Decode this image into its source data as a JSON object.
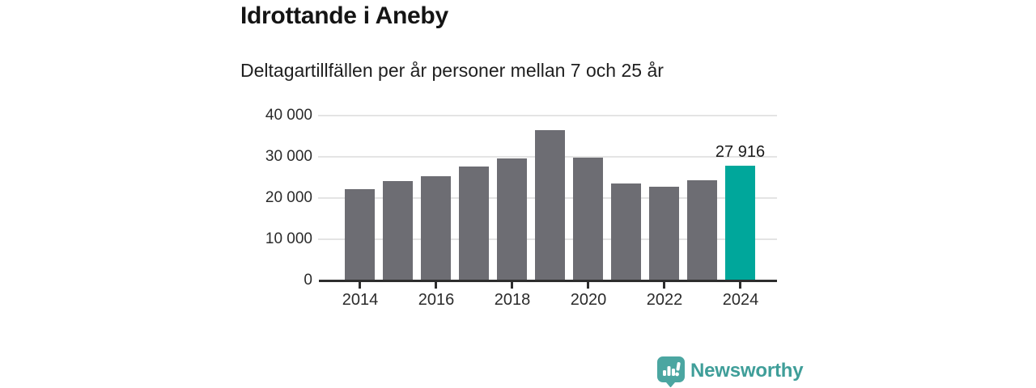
{
  "header": {
    "title": "Idrottande i Aneby",
    "subtitle": "Deltagartillfällen per år personer mellan 7 och 25 år"
  },
  "chart_data": {
    "type": "bar",
    "title": "Idrottande i Aneby",
    "subtitle": "Deltagartillfällen per år personer mellan 7 och 25 år",
    "categories": [
      "2014",
      "2015",
      "2016",
      "2017",
      "2018",
      "2019",
      "2020",
      "2021",
      "2022",
      "2023",
      "2024"
    ],
    "values": [
      22200,
      24100,
      25300,
      27600,
      29700,
      36500,
      29800,
      23600,
      22800,
      24400,
      27916
    ],
    "ylim": [
      0,
      40000
    ],
    "ytick_values": [
      0,
      10000,
      20000,
      30000,
      40000
    ],
    "ytick_labels": [
      "0",
      "10 000",
      "20 000",
      "30 000",
      "40 000"
    ],
    "xtick_indices": [
      0,
      2,
      4,
      6,
      8,
      10
    ],
    "xtick_labels": [
      "2014",
      "2016",
      "2018",
      "2020",
      "2022",
      "2024"
    ],
    "grid": true,
    "legend": "none",
    "bar_color": "#6d6d73",
    "highlight_index": 10,
    "highlight_color": "#00a79b",
    "highlight_value_label": "27 916"
  },
  "footer": {
    "brand_name": "Newsworthy",
    "brand_color": "#3f9e99",
    "logo_icon": "bar-chart-speech-bubble"
  }
}
